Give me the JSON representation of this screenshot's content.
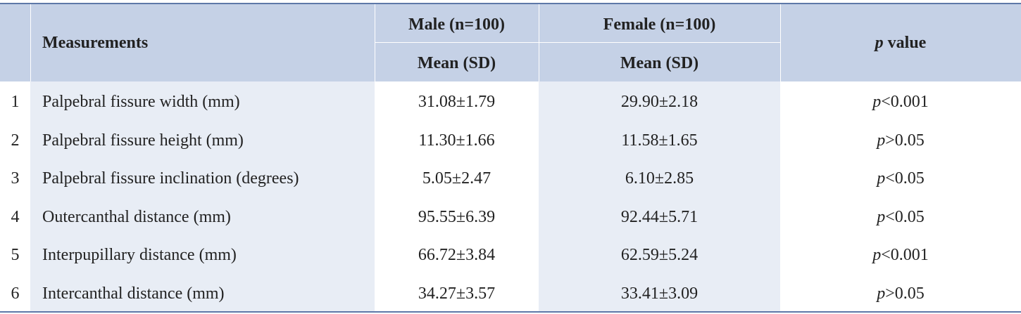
{
  "header": {
    "measurements": "Measurements",
    "male_group": "Male (n=100)",
    "female_group": "Female (n=100)",
    "male_stat": "Mean (SD)",
    "female_stat": "Mean (SD)",
    "p_italic": "p",
    "p_rest": " value"
  },
  "rows": [
    {
      "num": "1",
      "measurement": "Palpebral fissure width (mm)",
      "male": "31.08±1.79",
      "female": "29.90±2.18",
      "p_sym": "p",
      "p_val": "<0.001"
    },
    {
      "num": "2",
      "measurement": "Palpebral fissure height (mm)",
      "male": "11.30±1.66",
      "female": "11.58±1.65",
      "p_sym": "p",
      "p_val": ">0.05"
    },
    {
      "num": "3",
      "measurement": "Palpebral fissure inclination (degrees)",
      "male": "5.05±2.47",
      "female": "6.10±2.85",
      "p_sym": "p",
      "p_val": "<0.05"
    },
    {
      "num": "4",
      "measurement": "Outercanthal distance (mm)",
      "male": "95.55±6.39",
      "female": "92.44±5.71",
      "p_sym": "p",
      "p_val": "<0.05"
    },
    {
      "num": "5",
      "measurement": "Interpupillary distance (mm)",
      "male": "66.72±3.84",
      "female": "62.59±5.24",
      "p_sym": "p",
      "p_val": "<0.001"
    },
    {
      "num": "6",
      "measurement": "Intercanthal distance (mm)",
      "male": "34.27±3.57",
      "female": "33.41±3.09",
      "p_sym": "p",
      "p_val": ">0.05"
    }
  ]
}
